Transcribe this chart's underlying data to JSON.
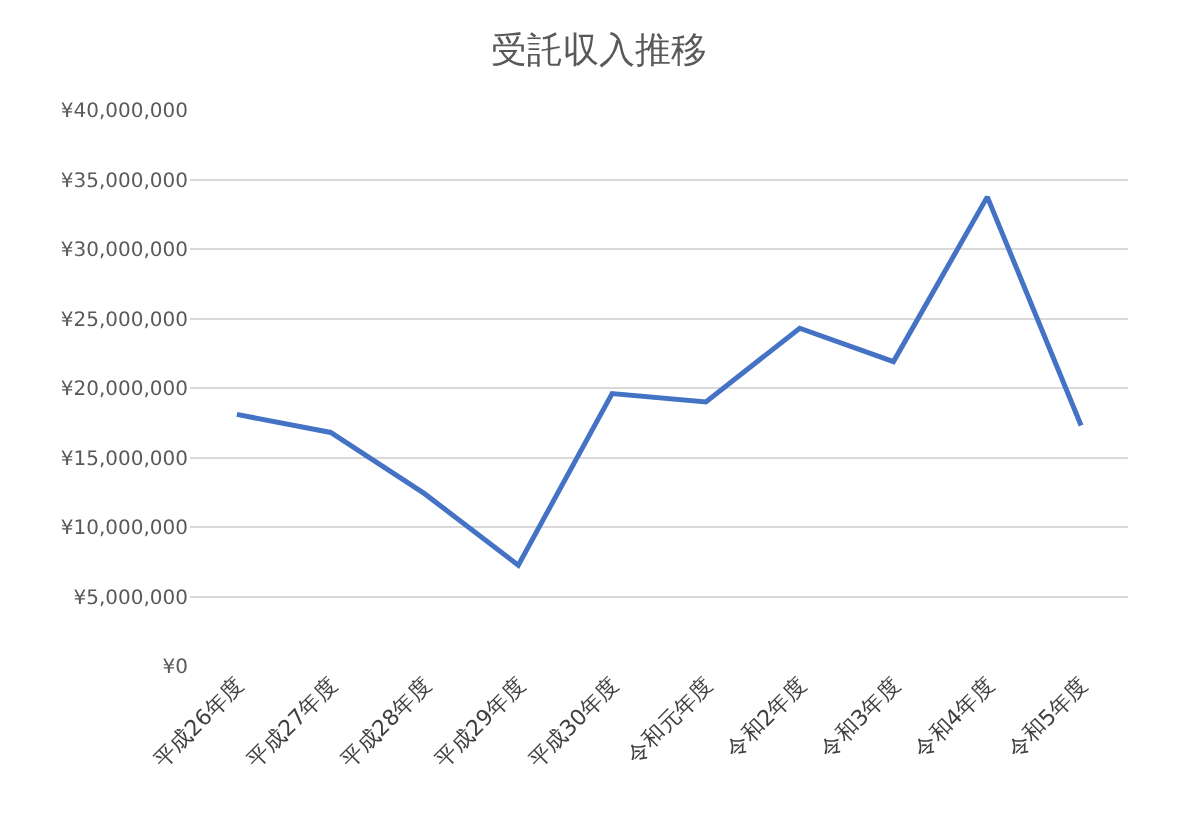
{
  "chart_data": {
    "type": "line",
    "title": "受託収入推移",
    "categories": [
      "平成26年度",
      "平成27年度",
      "平成28年度",
      "平成29年度",
      "平成30年度",
      "令和元年度",
      "令和2年度",
      "令和3年度",
      "令和4年度",
      "令和5年度"
    ],
    "series": [
      {
        "color": "#4472c4",
        "values": [
          18100000,
          16800000,
          12400000,
          7250000,
          19600000,
          19000000,
          24300000,
          21900000,
          33750000,
          17300000
        ]
      }
    ],
    "ylim": [
      0,
      40000000
    ],
    "yticks": [
      {
        "value": 0,
        "label": "¥0"
      },
      {
        "value": 5000000,
        "label": "¥5,000,000"
      },
      {
        "value": 10000000,
        "label": "¥10,000,000"
      },
      {
        "value": 15000000,
        "label": "¥15,000,000"
      },
      {
        "value": 20000000,
        "label": "¥20,000,000"
      },
      {
        "value": 25000000,
        "label": "¥25,000,000"
      },
      {
        "value": 30000000,
        "label": "¥30,000,000"
      },
      {
        "value": 35000000,
        "label": "¥35,000,000"
      },
      {
        "value": 40000000,
        "label": "¥40,000,000"
      }
    ],
    "grid": "y",
    "marker": "none",
    "line_style": "solid"
  }
}
